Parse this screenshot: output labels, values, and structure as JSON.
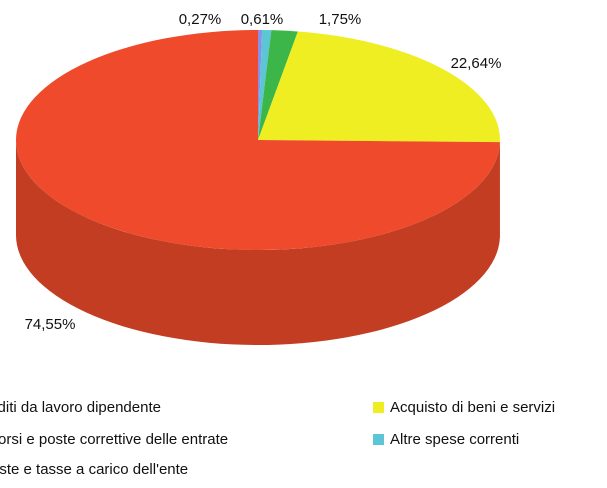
{
  "chart_data": {
    "type": "pie3d",
    "series": [
      {
        "name": "Rimborsi e poste correttive delle entrate",
        "color": "#8c8fe6",
        "value": 0.27,
        "value_label": "0,27%"
      },
      {
        "name": "Altre spese correnti",
        "color": "#5cc6d6",
        "value": 0.61,
        "value_label": "0,61%"
      },
      {
        "name": "Imposte e tasse a carico dell'ente",
        "color": "#3cb648",
        "value": 1.75,
        "value_label": "1,75%"
      },
      {
        "name": "Acquisto di beni e servizi",
        "color": "#eeee22",
        "value": 22.64,
        "value_label": "22,64%"
      },
      {
        "name": "Redditi da lavoro dipendente",
        "color": "#ee4a2b",
        "value": 74.55,
        "value_label": "74,55%"
      }
    ]
  }
}
